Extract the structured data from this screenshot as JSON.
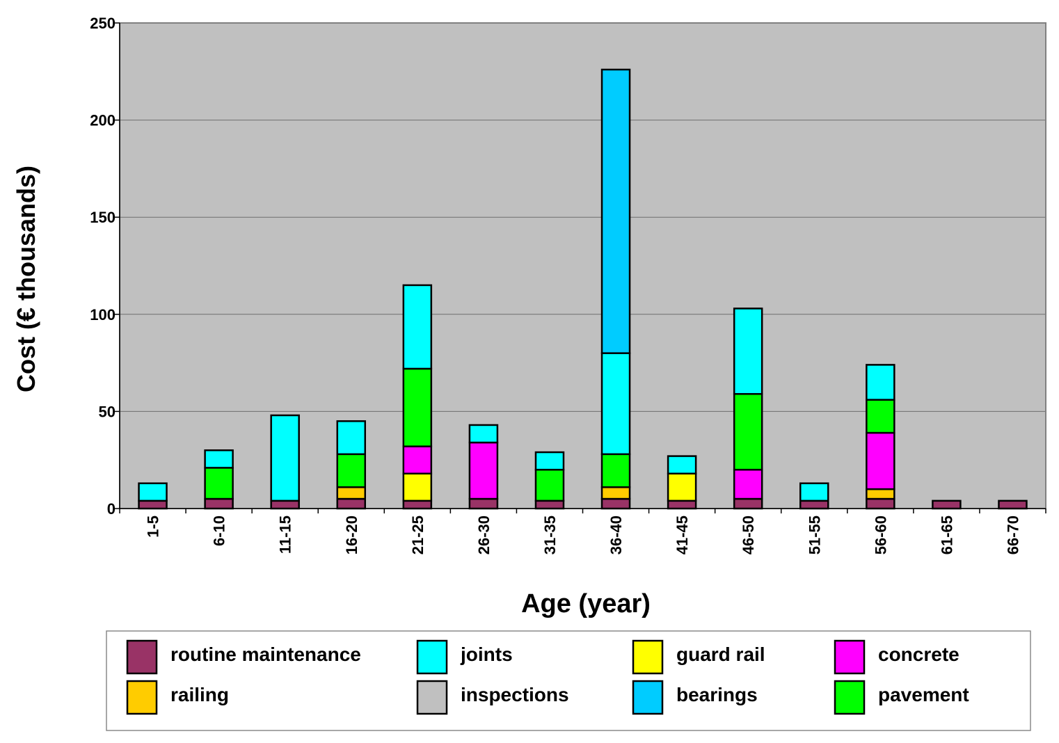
{
  "chart_data": {
    "type": "bar",
    "stacked": true,
    "title": "",
    "xlabel": "Age (year)",
    "ylabel": "Cost (€ thousands)",
    "ylim": [
      0,
      250
    ],
    "yticks": [
      0,
      50,
      100,
      150,
      200,
      250
    ],
    "grid": true,
    "legend_position": "bottom",
    "plot_background": "#c0c0c0",
    "categories": [
      "1-5",
      "6-10",
      "11-15",
      "16-20",
      "21-25",
      "26-30",
      "31-35",
      "36-40",
      "41-45",
      "46-50",
      "51-55",
      "56-60",
      "61-65",
      "66-70"
    ],
    "series": [
      {
        "name": "routine maintenance",
        "color": "#993366",
        "values": [
          4,
          5,
          4,
          5,
          4,
          5,
          4,
          5,
          4,
          5,
          4,
          5,
          4,
          4
        ]
      },
      {
        "name": "inspections",
        "color": "#c0c0c0",
        "values": [
          0,
          0,
          0,
          0,
          0,
          0,
          0,
          0,
          0,
          0,
          0,
          0,
          0,
          0
        ]
      },
      {
        "name": "railing",
        "color": "#ffcc00",
        "values": [
          0,
          0,
          0,
          6,
          0,
          0,
          0,
          6,
          0,
          0,
          0,
          5,
          0,
          0
        ]
      },
      {
        "name": "guard rail",
        "color": "#ffff00",
        "values": [
          0,
          0,
          0,
          0,
          14,
          0,
          0,
          0,
          14,
          0,
          0,
          0,
          0,
          0
        ]
      },
      {
        "name": "concrete",
        "color": "#ff00ff",
        "values": [
          0,
          0,
          0,
          0,
          14,
          29,
          0,
          0,
          0,
          15,
          0,
          29,
          0,
          0
        ]
      },
      {
        "name": "pavement",
        "color": "#00ff00",
        "values": [
          0,
          16,
          0,
          17,
          40,
          0,
          16,
          17,
          0,
          39,
          0,
          17,
          0,
          0
        ]
      },
      {
        "name": "joints",
        "color": "#00ffff",
        "values": [
          9,
          9,
          44,
          17,
          43,
          9,
          9,
          52,
          9,
          44,
          9,
          18,
          0,
          0
        ]
      },
      {
        "name": "bearings",
        "color": "#00ccff",
        "values": [
          0,
          0,
          0,
          0,
          0,
          0,
          0,
          146,
          0,
          0,
          0,
          0,
          0,
          0
        ]
      }
    ],
    "legend": [
      {
        "name": "routine maintenance",
        "color": "#993366"
      },
      {
        "name": "joints",
        "color": "#00ffff"
      },
      {
        "name": "guard rail",
        "color": "#ffff00"
      },
      {
        "name": "concrete",
        "color": "#ff00ff"
      },
      {
        "name": "railing",
        "color": "#ffcc00"
      },
      {
        "name": "inspections",
        "color": "#c0c0c0"
      },
      {
        "name": "bearings",
        "color": "#00ccff"
      },
      {
        "name": "pavement",
        "color": "#00ff00"
      }
    ]
  }
}
